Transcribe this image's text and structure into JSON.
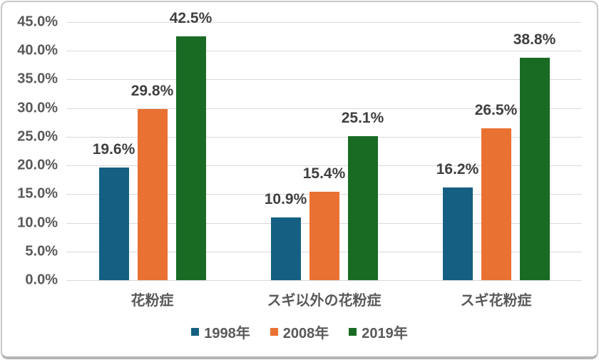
{
  "chart_data": {
    "type": "bar",
    "title": "",
    "categories": [
      "花粉症",
      "スギ以外の花粉症",
      "スギ花粉症"
    ],
    "series": [
      {
        "name": "1998年",
        "color": "#156082",
        "values": [
          19.6,
          10.9,
          16.2
        ],
        "labels": [
          "19.6%",
          "10.9%",
          "16.2%"
        ]
      },
      {
        "name": "2008年",
        "color": "#E97132",
        "values": [
          29.8,
          15.4,
          26.5
        ],
        "labels": [
          "29.8%",
          "15.4%",
          "26.5%"
        ]
      },
      {
        "name": "2019年",
        "color": "#196B24",
        "values": [
          42.5,
          25.1,
          38.8
        ],
        "labels": [
          "42.5%",
          "25.1%",
          "38.8%"
        ]
      }
    ],
    "y_axis": {
      "min": 0,
      "max": 45,
      "step": 5,
      "unit": "%"
    },
    "y_ticks": [
      "0.0%",
      "5.0%",
      "10.0%",
      "15.0%",
      "20.0%",
      "25.0%",
      "30.0%",
      "35.0%",
      "40.0%",
      "45.0%"
    ],
    "grid": true,
    "legend_position": "bottom"
  },
  "palette": {
    "series_1998": "#156082",
    "series_2008": "#E97132",
    "series_2019": "#196B24",
    "gridline": "#d9d9d9",
    "axis_text": "#595959",
    "data_label_text": "#3f3f3f",
    "card_border": "#c7c7c7",
    "background": "#ffffff"
  }
}
